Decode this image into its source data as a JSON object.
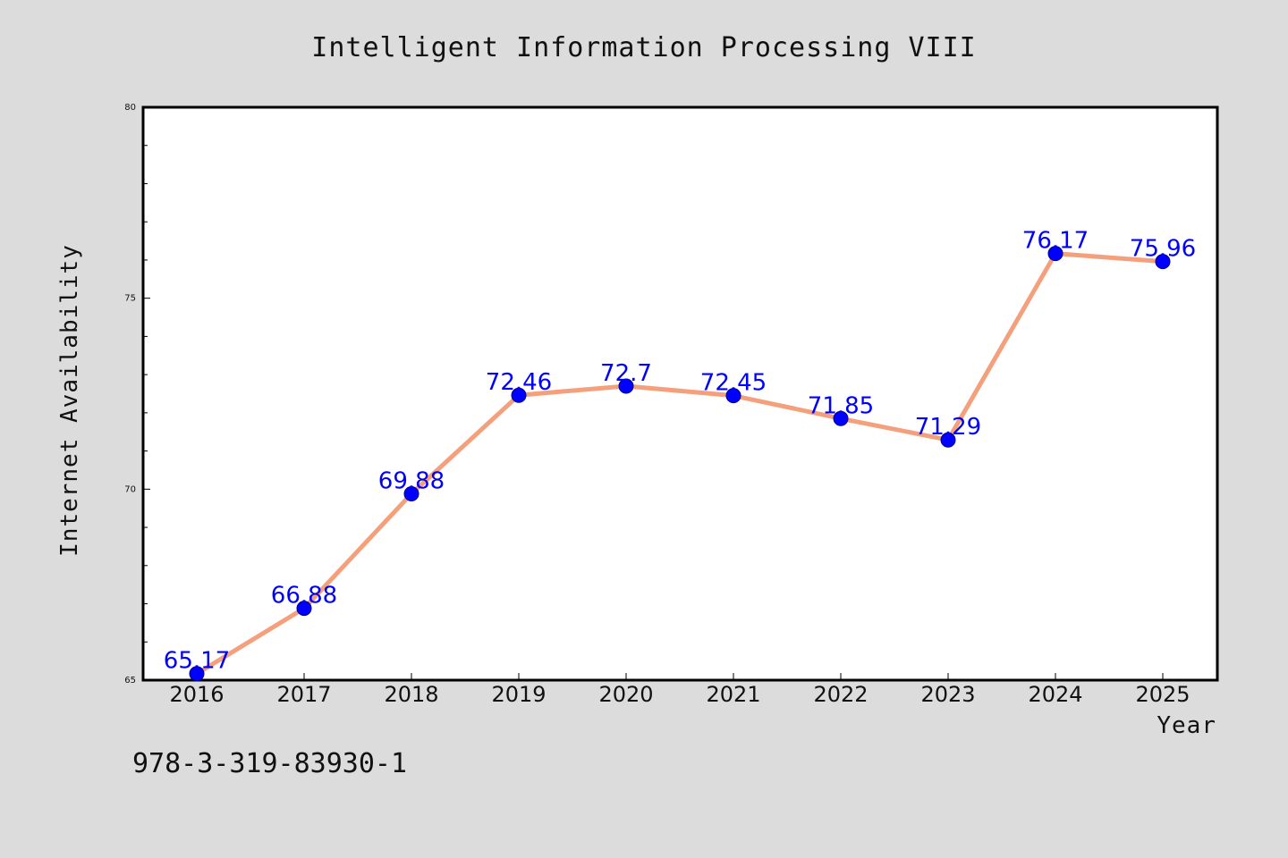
{
  "chart_data": {
    "type": "line",
    "title": "Intelligent Information Processing VIII",
    "xlabel": "Year",
    "ylabel": "Internet Availability",
    "x": [
      "2016",
      "2017",
      "2018",
      "2019",
      "2020",
      "2021",
      "2022",
      "2023",
      "2024",
      "2025"
    ],
    "series": [
      {
        "values": [
          65.17,
          66.88,
          69.88,
          72.46,
          72.7,
          72.45,
          71.85,
          71.29,
          76.17,
          75.96
        ],
        "labels": [
          "65.17",
          "66.88",
          "69.88",
          "72.46",
          "72.7",
          "72.45",
          "71.85",
          "71.29",
          "76.17",
          "75.96"
        ]
      }
    ],
    "ylim": [
      65,
      80
    ],
    "yticks": [
      "65",
      "70",
      "75",
      "80"
    ],
    "grid": false,
    "colors": {
      "line": "#f4a07c",
      "marker": "#0000ff",
      "label": "#0000ff",
      "plot_bg": "#ffffff",
      "page_bg": "#dcdcdc"
    }
  },
  "footer": {
    "text": "978-3-319-83930-1"
  }
}
